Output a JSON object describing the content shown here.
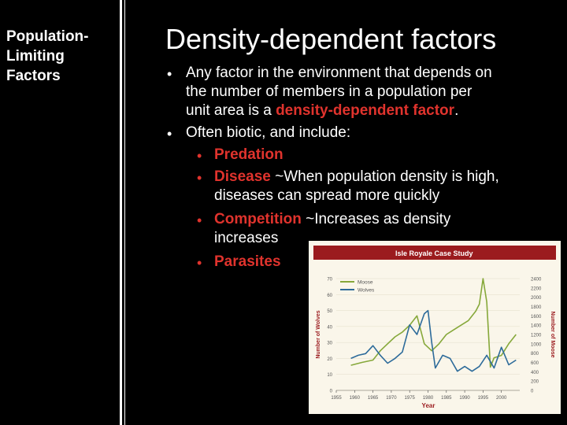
{
  "sidebar": {
    "title": "Population-\nLimiting\nFactors"
  },
  "slide": {
    "title": "Density-dependent factors",
    "bullet1": {
      "line1": "Any factor in the environment that depends on",
      "line2": "the number of members in a population per",
      "line3_pre": "unit area is a ",
      "line3_em": "density-dependent factor",
      "line3_post": "."
    },
    "bullet2": "Often biotic, and include:",
    "sub": {
      "predation": "Predation",
      "disease": "Disease",
      "disease_desc1": " ~When population density is high,",
      "disease_desc2": "diseases can spread more quickly",
      "competition": "Competition",
      "competition_desc1": " ~Increases as density",
      "competition_desc2": "increases",
      "parasites": "Parasites"
    }
  },
  "chart_data": {
    "type": "line",
    "title": "Isle Royale Case Study",
    "xlabel": "Year",
    "ylabel_left": "Number of Wolves",
    "ylabel_right": "Number of Moose",
    "x_ticks": [
      "1955",
      "1960",
      "1965",
      "1970",
      "1975",
      "1980",
      "1985",
      "1990",
      "1995",
      "2000"
    ],
    "y_left_ticks": [
      "0",
      "10",
      "20",
      "30",
      "40",
      "50",
      "60",
      "70"
    ],
    "y_right_ticks": [
      "0",
      "200",
      "400",
      "600",
      "800",
      "1000",
      "1200",
      "1400",
      "1600",
      "1800",
      "2000",
      "2200",
      "2400"
    ],
    "xlim": [
      1955,
      2005
    ],
    "ylim_left": [
      0,
      70
    ],
    "ylim_right": [
      0,
      2400
    ],
    "legend_position": "top-left",
    "series": [
      {
        "name": "Moose",
        "axis": "right",
        "color": "#86a83a",
        "x": [
          1959,
          1962,
          1965,
          1967,
          1969,
          1971,
          1973,
          1975,
          1977,
          1979,
          1981,
          1983,
          1985,
          1987,
          1989,
          1991,
          1993,
          1994,
          1995,
          1996,
          1997,
          1998,
          2000,
          2002,
          2004
        ],
        "values": [
          540,
          600,
          650,
          850,
          1000,
          1150,
          1250,
          1400,
          1600,
          1000,
          850,
          1000,
          1200,
          1300,
          1400,
          1500,
          1700,
          1850,
          2400,
          1900,
          500,
          700,
          750,
          1000,
          1200
        ]
      },
      {
        "name": "Wolves",
        "axis": "left",
        "color": "#2d6b9a",
        "x": [
          1959,
          1961,
          1963,
          1965,
          1967,
          1969,
          1971,
          1973,
          1975,
          1977,
          1979,
          1980,
          1981,
          1982,
          1984,
          1986,
          1988,
          1990,
          1992,
          1994,
          1996,
          1998,
          2000,
          2002,
          2004
        ],
        "values": [
          20,
          22,
          23,
          28,
          22,
          17,
          20,
          24,
          41,
          35,
          48,
          50,
          30,
          14,
          22,
          20,
          12,
          15,
          12,
          15,
          22,
          14,
          27,
          16,
          19
        ]
      }
    ]
  }
}
